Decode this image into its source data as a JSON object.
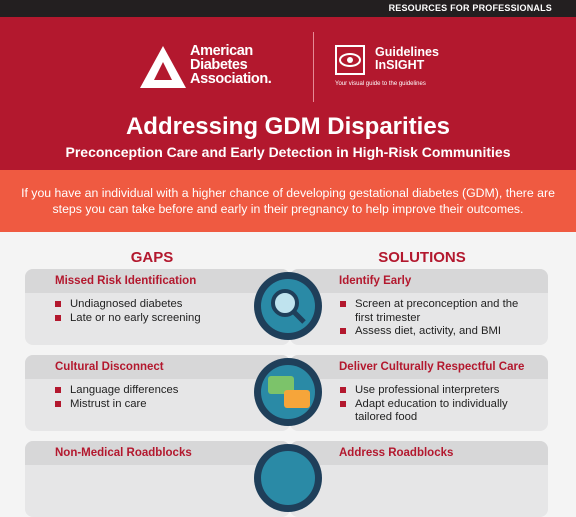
{
  "header": {
    "resources": "RESOURCES FOR PROFESSIONALS",
    "org_name": [
      "American",
      "Diabetes",
      "Association."
    ],
    "insight_name": [
      "Guidelines",
      "InSIGHT"
    ],
    "insight_tagline": "Your visual guide to the guidelines",
    "title": "Addressing GDM Disparities",
    "subtitle": "Preconception Care and Early Detection in High-Risk Communities"
  },
  "intro": "If you have an individual with a higher chance of developing gestational diabetes (GDM), there are steps you can take before and early in their pregnancy to help improve their outcomes.",
  "columns": {
    "gaps": "GAPS",
    "solutions": "SOLUTIONS"
  },
  "rows": [
    {
      "gap_title": "Missed Risk Identification",
      "gap_items": [
        "Undiagnosed diabetes",
        "Late or no early screening"
      ],
      "solution_title": "Identify Early",
      "solution_items": [
        "Screen at preconception and the first trimester",
        "Assess diet, activity, and BMI"
      ]
    },
    {
      "gap_title": "Cultural Disconnect",
      "gap_items": [
        "Language differences",
        "Mistrust in care"
      ],
      "solution_title": "Deliver Culturally Respectful Care",
      "solution_items": [
        "Use professional interpreters",
        "Adapt education to individually tailored food"
      ]
    },
    {
      "gap_title": "Non-Medical Roadblocks",
      "gap_items": [],
      "solution_title": "Address Roadblocks",
      "solution_items": []
    }
  ]
}
